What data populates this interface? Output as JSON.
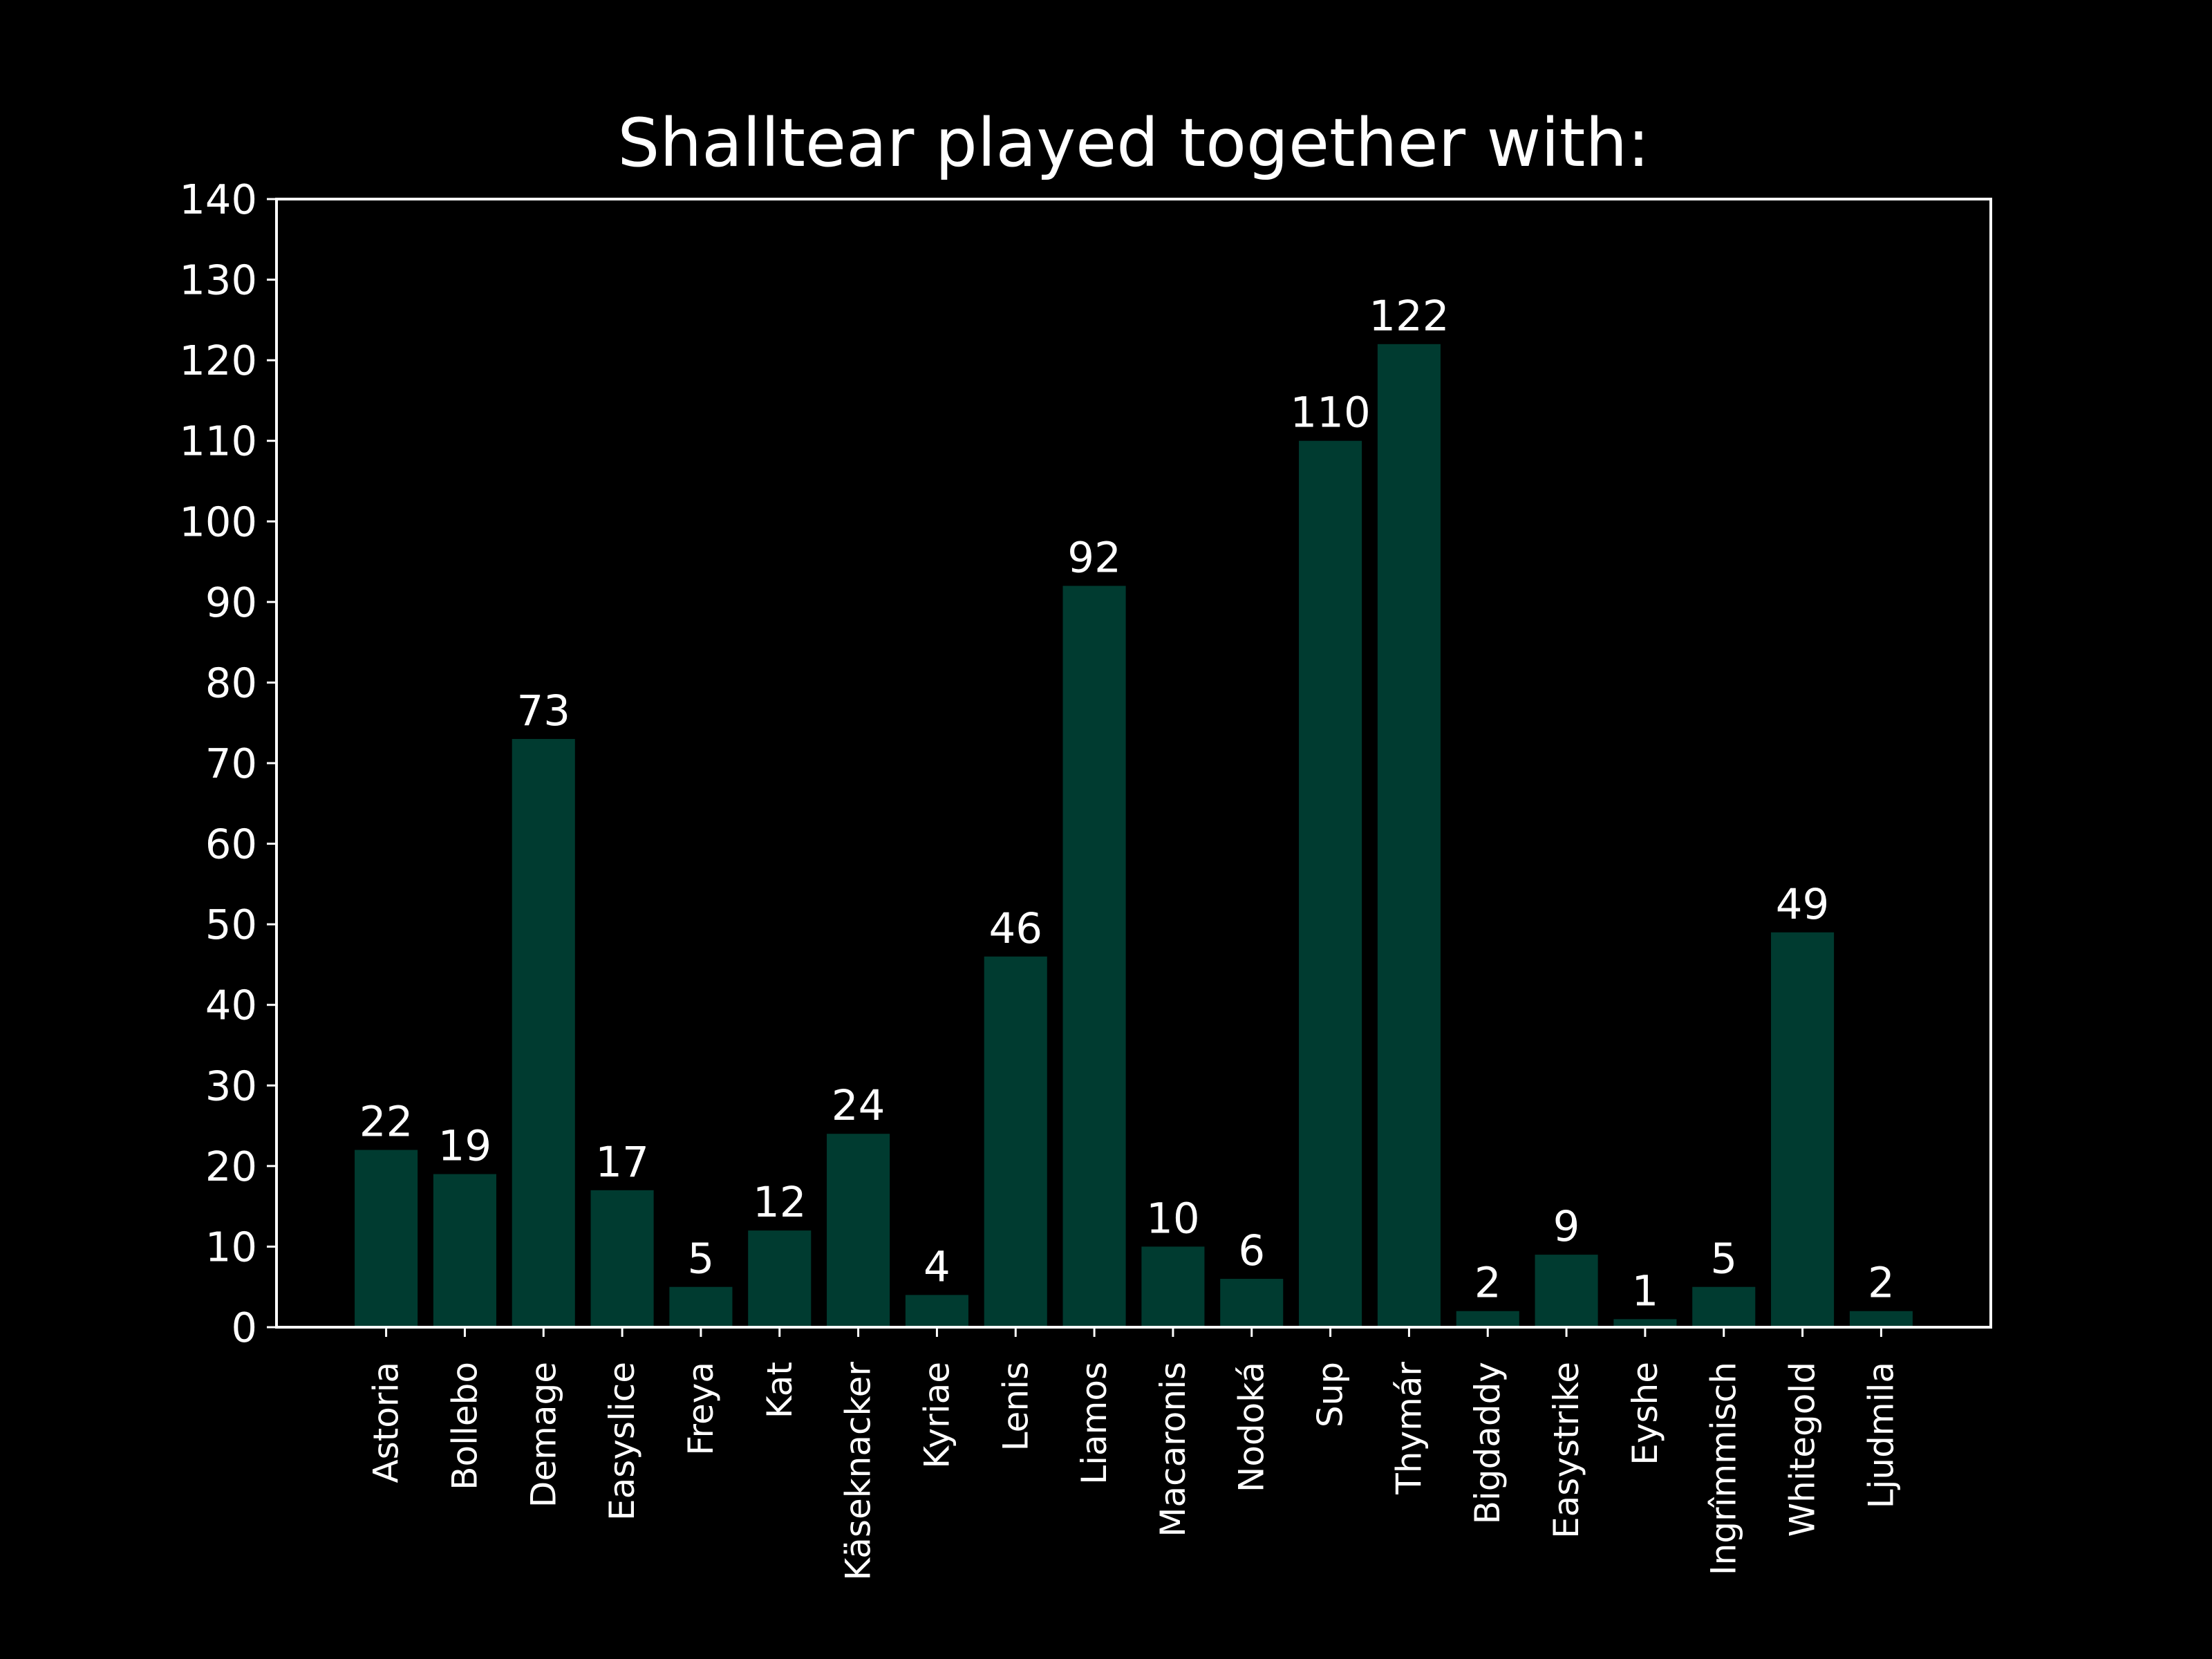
{
  "chart_data": {
    "type": "bar",
    "title": "Shalltear played together with:",
    "xlabel": "",
    "ylabel": "",
    "ylim": [
      0,
      140
    ],
    "yticks": [
      0,
      10,
      20,
      30,
      40,
      50,
      60,
      70,
      80,
      90,
      100,
      110,
      120,
      130,
      140
    ],
    "categories": [
      "Astoria",
      "Bollebo",
      "Demage",
      "Easyslice",
      "Freya",
      "Kat",
      "Käseknacker",
      "Kyriae",
      "Lenis",
      "Liamos",
      "Macaronis",
      "Nodoká",
      "Sup",
      "Thymár",
      "Bigdaddy",
      "Easystrike",
      "Eyshe",
      "Ingrîmmisch",
      "Whitegold",
      "Ljudmila"
    ],
    "values": [
      22,
      19,
      73,
      17,
      5,
      12,
      24,
      4,
      46,
      92,
      10,
      6,
      110,
      122,
      2,
      9,
      1,
      5,
      49,
      2
    ],
    "grid": false,
    "legend": "none",
    "colors": {
      "background": "#000000",
      "bar": "#003b30",
      "axis": "#ffffff",
      "text": "#ffffff"
    }
  }
}
